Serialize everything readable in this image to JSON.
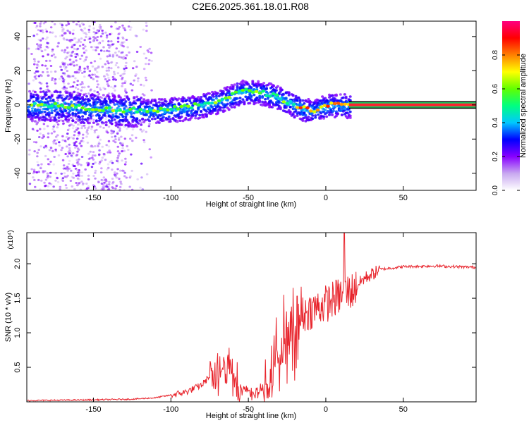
{
  "title": "C2E6.2025.361.18.01.R08",
  "chart_data": [
    {
      "type": "heatmap",
      "title": "C2E6.2025.361.18.01.R08",
      "xlabel": "Height of straight line (km)",
      "ylabel": "Frequency (Hz)",
      "xlim": [
        -193,
        97
      ],
      "ylim": [
        -50,
        49
      ],
      "xticks": [
        -150,
        -100,
        -50,
        0,
        50
      ],
      "yticks": [
        -40,
        -20,
        0,
        20,
        40
      ],
      "x_tick_labels": [
        "-150",
        "-100",
        "-50",
        "0",
        "50"
      ],
      "y_tick_labels": [
        "-40",
        "-20",
        "0",
        "20",
        "40"
      ],
      "colorbar": {
        "label": "Normalized spectral amplitude",
        "range": [
          0,
          1
        ],
        "ticks": [
          0.0,
          0.2,
          0.4,
          0.6,
          0.8
        ],
        "tick_labels": [
          "0.0",
          "0.2",
          "0.4",
          "0.6",
          "0.8"
        ],
        "colors": [
          "#ffffff",
          "#c8a8f0",
          "#8800ff",
          "#0000ff",
          "#00c8ff",
          "#00ff80",
          "#60ff00",
          "#ffff00",
          "#ff8000",
          "#ff0000",
          "#ff0080"
        ]
      },
      "ridge_center": [
        {
          "x": -190,
          "y": 0
        },
        {
          "x": -170,
          "y": 0
        },
        {
          "x": -150,
          "y": -2
        },
        {
          "x": -130,
          "y": -3
        },
        {
          "x": -110,
          "y": -3
        },
        {
          "x": -95,
          "y": -2
        },
        {
          "x": -80,
          "y": 0
        },
        {
          "x": -65,
          "y": 4
        },
        {
          "x": -55,
          "y": 8
        },
        {
          "x": -45,
          "y": 8
        },
        {
          "x": -35,
          "y": 6
        },
        {
          "x": -25,
          "y": 2
        },
        {
          "x": -15,
          "y": -2
        },
        {
          "x": -8,
          "y": -3
        },
        {
          "x": 0,
          "y": 0
        },
        {
          "x": 8,
          "y": 0
        },
        {
          "x": 15,
          "y": 0
        },
        {
          "x": 95,
          "y": 0
        }
      ]
    },
    {
      "type": "line",
      "xlabel": "Height of straight line (km)",
      "ylabel": "SNR (10 * v/v)",
      "scale_label": "(x10⁴)",
      "xlim": [
        -193,
        97
      ],
      "ylim": [
        0,
        2.45
      ],
      "xticks": [
        -150,
        -100,
        -50,
        0,
        50
      ],
      "yticks": [
        0.5,
        1.0,
        1.5,
        2.0
      ],
      "x_tick_labels": [
        "-150",
        "-100",
        "-50",
        "0",
        "50"
      ],
      "y_tick_labels": [
        "0.5",
        "1.0",
        "1.5",
        "2.0"
      ],
      "series": [
        {
          "name": "SNR",
          "color": "#e8242c",
          "envelope": [
            {
              "x": -193,
              "y": 0.02
            },
            {
              "x": -150,
              "y": 0.03
            },
            {
              "x": -125,
              "y": 0.04
            },
            {
              "x": -110,
              "y": 0.06
            },
            {
              "x": -100,
              "y": 0.1
            },
            {
              "x": -90,
              "y": 0.15
            },
            {
              "x": -80,
              "y": 0.25
            },
            {
              "x": -72,
              "y": 0.45
            },
            {
              "x": -65,
              "y": 0.7
            },
            {
              "x": -60,
              "y": 0.55
            },
            {
              "x": -55,
              "y": 0.2
            },
            {
              "x": -45,
              "y": 0.15
            },
            {
              "x": -40,
              "y": 0.25
            },
            {
              "x": -35,
              "y": 0.5
            },
            {
              "x": -30,
              "y": 1.0
            },
            {
              "x": -25,
              "y": 1.2
            },
            {
              "x": -18,
              "y": 1.25
            },
            {
              "x": -10,
              "y": 1.35
            },
            {
              "x": 0,
              "y": 1.45
            },
            {
              "x": 8,
              "y": 1.55
            },
            {
              "x": 12,
              "y": 1.6
            },
            {
              "x": 18,
              "y": 1.65
            },
            {
              "x": 25,
              "y": 1.8
            },
            {
              "x": 35,
              "y": 1.92
            },
            {
              "x": 50,
              "y": 1.96
            },
            {
              "x": 70,
              "y": 1.97
            },
            {
              "x": 97,
              "y": 1.95
            }
          ],
          "spike": {
            "x": 12,
            "y": 2.45
          }
        }
      ]
    }
  ]
}
